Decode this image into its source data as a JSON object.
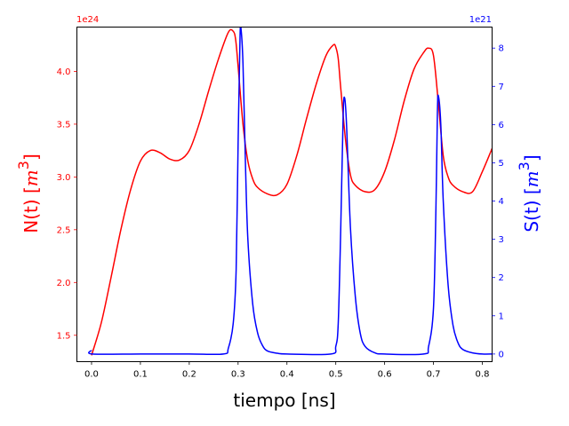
{
  "chart_data": {
    "type": "line",
    "xlabel": "tiempo [ns]",
    "xlim": [
      -0.03,
      0.82
    ],
    "xticks": [
      0.0,
      0.1,
      0.2,
      0.3,
      0.4,
      0.5,
      0.6,
      0.7,
      0.8
    ],
    "xtick_labels": [
      "0.0",
      "0.1",
      "0.2",
      "0.3",
      "0.4",
      "0.5",
      "0.6",
      "0.7",
      "0.8"
    ],
    "grid": false,
    "left_axis": {
      "label_prefix": "N(t) [",
      "label_unit_base": "m",
      "label_unit_exp": "3",
      "label_suffix": "]",
      "offset_text": "1e24",
      "scale": 1e+24,
      "color": "#ff0000",
      "ylim": [
        1.25,
        4.42
      ],
      "ticks": [
        1.5,
        2.0,
        2.5,
        3.0,
        3.5,
        4.0
      ],
      "tick_labels": [
        "1.5",
        "2.0",
        "2.5",
        "3.0",
        "3.5",
        "4.0"
      ]
    },
    "right_axis": {
      "label_prefix": "S(t) [",
      "label_unit_base": "m",
      "label_unit_exp": "3",
      "label_suffix": "]",
      "offset_text": "1e21",
      "scale": 1e+21,
      "color": "#0000ff",
      "ylim": [
        -0.2,
        8.55
      ],
      "ticks": [
        0,
        1,
        2,
        3,
        4,
        5,
        6,
        7,
        8
      ],
      "tick_labels": [
        "0",
        "1",
        "2",
        "3",
        "4",
        "5",
        "6",
        "7",
        "8"
      ]
    },
    "series": [
      {
        "axis": "left",
        "color": "#ff0000",
        "points": [
          [
            0.0,
            1.31
          ],
          [
            0.02,
            1.62
          ],
          [
            0.04,
            2.05
          ],
          [
            0.06,
            2.5
          ],
          [
            0.08,
            2.88
          ],
          [
            0.1,
            3.15
          ],
          [
            0.12,
            3.25
          ],
          [
            0.14,
            3.23
          ],
          [
            0.16,
            3.17
          ],
          [
            0.18,
            3.16
          ],
          [
            0.2,
            3.25
          ],
          [
            0.22,
            3.5
          ],
          [
            0.24,
            3.82
          ],
          [
            0.26,
            4.12
          ],
          [
            0.28,
            4.37
          ],
          [
            0.29,
            4.38
          ],
          [
            0.295,
            4.3
          ],
          [
            0.3,
            4.05
          ],
          [
            0.31,
            3.5
          ],
          [
            0.32,
            3.15
          ],
          [
            0.33,
            2.98
          ],
          [
            0.34,
            2.9
          ],
          [
            0.36,
            2.84
          ],
          [
            0.38,
            2.83
          ],
          [
            0.4,
            2.93
          ],
          [
            0.42,
            3.2
          ],
          [
            0.44,
            3.55
          ],
          [
            0.46,
            3.88
          ],
          [
            0.48,
            4.15
          ],
          [
            0.495,
            4.25
          ],
          [
            0.5,
            4.23
          ],
          [
            0.505,
            4.12
          ],
          [
            0.51,
            3.85
          ],
          [
            0.52,
            3.35
          ],
          [
            0.53,
            3.02
          ],
          [
            0.54,
            2.92
          ],
          [
            0.56,
            2.86
          ],
          [
            0.58,
            2.88
          ],
          [
            0.6,
            3.05
          ],
          [
            0.62,
            3.35
          ],
          [
            0.64,
            3.72
          ],
          [
            0.66,
            4.02
          ],
          [
            0.68,
            4.18
          ],
          [
            0.69,
            4.22
          ],
          [
            0.7,
            4.15
          ],
          [
            0.71,
            3.7
          ],
          [
            0.72,
            3.2
          ],
          [
            0.73,
            3.0
          ],
          [
            0.74,
            2.92
          ],
          [
            0.76,
            2.86
          ],
          [
            0.78,
            2.86
          ],
          [
            0.8,
            3.05
          ],
          [
            0.82,
            3.27
          ]
        ]
      },
      {
        "axis": "right",
        "color": "#0000ff",
        "points": [
          [
            0.0,
            0.1
          ],
          [
            0.002,
            0.0
          ],
          [
            0.1,
            0.0
          ],
          [
            0.2,
            0.0
          ],
          [
            0.27,
            0.0
          ],
          [
            0.28,
            0.15
          ],
          [
            0.29,
            0.8
          ],
          [
            0.296,
            2.2
          ],
          [
            0.3,
            5.5
          ],
          [
            0.304,
            8.3
          ],
          [
            0.306,
            8.5
          ],
          [
            0.31,
            7.6
          ],
          [
            0.315,
            5.0
          ],
          [
            0.32,
            3.0
          ],
          [
            0.33,
            1.3
          ],
          [
            0.34,
            0.55
          ],
          [
            0.35,
            0.22
          ],
          [
            0.36,
            0.08
          ],
          [
            0.38,
            0.02
          ],
          [
            0.4,
            0.0
          ],
          [
            0.49,
            0.0
          ],
          [
            0.5,
            0.2
          ],
          [
            0.505,
            0.8
          ],
          [
            0.51,
            3.2
          ],
          [
            0.515,
            6.2
          ],
          [
            0.518,
            6.7
          ],
          [
            0.522,
            6.0
          ],
          [
            0.53,
            3.3
          ],
          [
            0.54,
            1.5
          ],
          [
            0.55,
            0.55
          ],
          [
            0.56,
            0.2
          ],
          [
            0.58,
            0.03
          ],
          [
            0.6,
            0.0
          ],
          [
            0.68,
            0.0
          ],
          [
            0.69,
            0.2
          ],
          [
            0.7,
            1.2
          ],
          [
            0.705,
            3.8
          ],
          [
            0.708,
            6.3
          ],
          [
            0.71,
            6.75
          ],
          [
            0.715,
            6.0
          ],
          [
            0.72,
            4.0
          ],
          [
            0.73,
            1.8
          ],
          [
            0.74,
            0.75
          ],
          [
            0.75,
            0.3
          ],
          [
            0.76,
            0.12
          ],
          [
            0.78,
            0.03
          ],
          [
            0.8,
            0.0
          ],
          [
            0.82,
            0.0
          ]
        ]
      }
    ]
  }
}
